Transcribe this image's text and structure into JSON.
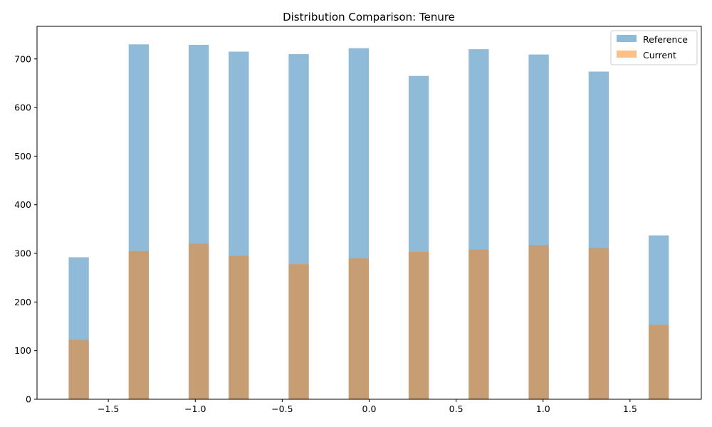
{
  "chart_data": {
    "type": "bar",
    "title": "Distribution Comparison: Tenure",
    "xlabel": "",
    "ylabel": "",
    "xlim": [
      -1.91,
      1.91
    ],
    "ylim": [
      0,
      767
    ],
    "x_ticks": [
      -1.5,
      -1.0,
      -0.5,
      0.0,
      0.5,
      1.0,
      1.5
    ],
    "x_tick_labels": [
      "−1.5",
      "−1.0",
      "−0.5",
      "0.0",
      "0.5",
      "1.0",
      "1.5"
    ],
    "y_ticks": [
      0,
      100,
      200,
      300,
      400,
      500,
      600,
      700
    ],
    "y_tick_labels": [
      "0",
      "100",
      "200",
      "300",
      "400",
      "500",
      "600",
      "700"
    ],
    "bin_width": 0.116,
    "legend_position": "top-right",
    "grid": false,
    "series": [
      {
        "name": "Reference",
        "color": "#1f77b4",
        "opacity": 0.5,
        "x": [
          -1.67,
          -1.325,
          -0.98,
          -0.75,
          -0.405,
          -0.06,
          0.285,
          0.63,
          0.975,
          1.32,
          1.665
        ],
        "values": [
          292,
          730,
          729,
          715,
          710,
          722,
          665,
          720,
          709,
          674,
          337
        ]
      },
      {
        "name": "Current",
        "color": "#ff7f0e",
        "opacity": 0.5,
        "x": [
          -1.67,
          -1.325,
          -0.98,
          -0.75,
          -0.405,
          -0.06,
          0.285,
          0.63,
          0.975,
          1.32,
          1.665
        ],
        "values": [
          122,
          305,
          320,
          295,
          278,
          290,
          303,
          308,
          317,
          311,
          153
        ]
      }
    ]
  }
}
